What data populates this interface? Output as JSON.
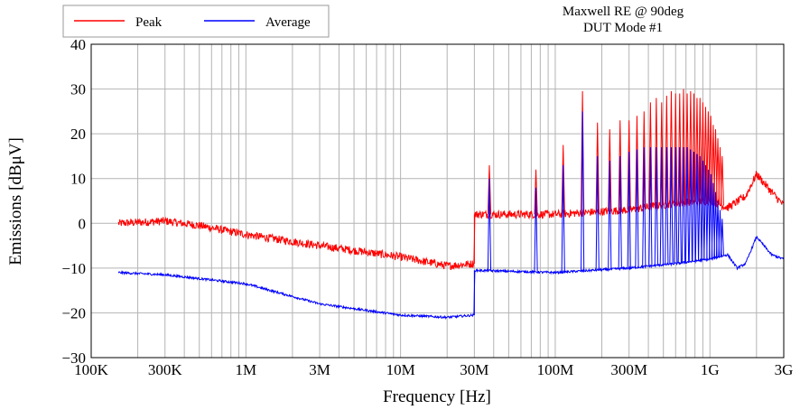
{
  "chart_data": {
    "type": "line",
    "title_lines": [
      "Maxwell RE @ 90deg",
      "DUT Mode #1"
    ],
    "xlabel": "Frequency [Hz]",
    "ylabel": "Emissions [dBμV]",
    "xscale": "log",
    "xlim": [
      100000,
      3000000000
    ],
    "ylim": [
      -30,
      40
    ],
    "grid": true,
    "legend_position": "top-left",
    "x_ticks": [
      {
        "value": 100000,
        "label": "100K"
      },
      {
        "value": 300000,
        "label": "300K"
      },
      {
        "value": 1000000,
        "label": "1M"
      },
      {
        "value": 3000000,
        "label": "3M"
      },
      {
        "value": 10000000,
        "label": "10M"
      },
      {
        "value": 30000000,
        "label": "30M"
      },
      {
        "value": 100000000,
        "label": "100M"
      },
      {
        "value": 300000000,
        "label": "300M"
      },
      {
        "value": 1000000000,
        "label": "1G"
      },
      {
        "value": 3000000000,
        "label": "3G"
      }
    ],
    "y_ticks": [
      {
        "value": -30,
        "label": "−30"
      },
      {
        "value": -20,
        "label": "−20"
      },
      {
        "value": -10,
        "label": "−10"
      },
      {
        "value": 0,
        "label": "0"
      },
      {
        "value": 10,
        "label": "10"
      },
      {
        "value": 20,
        "label": "20"
      },
      {
        "value": 30,
        "label": "30"
      },
      {
        "value": 40,
        "label": "40"
      }
    ],
    "series": [
      {
        "name": "Peak",
        "color": "#ff0000",
        "noise": 0.9,
        "baseline": [
          [
            150000,
            0
          ],
          [
            300000,
            0.5
          ],
          [
            500000,
            -0.5
          ],
          [
            1000000,
            -2.5
          ],
          [
            3000000,
            -5
          ],
          [
            10000000,
            -7.5
          ],
          [
            20000000,
            -9.5
          ],
          [
            29900000,
            -9
          ],
          [
            30100000,
            2
          ],
          [
            100000000,
            2
          ],
          [
            300000000,
            3
          ],
          [
            600000000,
            4.5
          ],
          [
            1000000000,
            5
          ],
          [
            1300000000,
            3.5
          ],
          [
            1700000000,
            6
          ],
          [
            2000000000,
            11
          ],
          [
            2500000000,
            7
          ],
          [
            3000000000,
            4
          ]
        ],
        "spikes": [
          [
            37500000,
            13
          ],
          [
            75000000,
            12
          ],
          [
            112500000,
            17.5
          ],
          [
            150000000,
            29.5
          ],
          [
            187500000,
            22.5
          ],
          [
            225000000,
            21
          ],
          [
            262500000,
            23
          ],
          [
            300000000,
            23
          ],
          [
            337500000,
            24
          ],
          [
            375000000,
            25
          ],
          [
            412500000,
            27
          ],
          [
            450000000,
            28
          ],
          [
            487500000,
            27
          ],
          [
            525000000,
            28.5
          ],
          [
            562500000,
            29.5
          ],
          [
            600000000,
            29
          ],
          [
            637500000,
            29
          ],
          [
            675000000,
            30
          ],
          [
            712500000,
            29
          ],
          [
            750000000,
            29.5
          ],
          [
            787500000,
            29
          ],
          [
            825000000,
            28
          ],
          [
            862500000,
            28
          ],
          [
            900000000,
            27
          ],
          [
            937500000,
            26
          ],
          [
            975000000,
            25
          ],
          [
            1012500000,
            24
          ],
          [
            1050000000,
            22
          ],
          [
            1087500000,
            21
          ],
          [
            1125000000,
            19
          ],
          [
            1162500000,
            17
          ],
          [
            1200000000,
            15
          ]
        ]
      },
      {
        "name": "Average",
        "color": "#0000ff",
        "noise": 0.25,
        "baseline": [
          [
            150000,
            -11
          ],
          [
            300000,
            -11.5
          ],
          [
            1000000,
            -13.5
          ],
          [
            3000000,
            -18
          ],
          [
            10000000,
            -20.5
          ],
          [
            20000000,
            -21
          ],
          [
            29900000,
            -20.5
          ],
          [
            30100000,
            -10.5
          ],
          [
            100000000,
            -11
          ],
          [
            300000000,
            -10
          ],
          [
            600000000,
            -9
          ],
          [
            1000000000,
            -8
          ],
          [
            1300000000,
            -7
          ],
          [
            1500000000,
            -10
          ],
          [
            1700000000,
            -9
          ],
          [
            2000000000,
            -3
          ],
          [
            2500000000,
            -7
          ],
          [
            3000000000,
            -8
          ]
        ],
        "spikes": [
          [
            37500000,
            10
          ],
          [
            75000000,
            8
          ],
          [
            112500000,
            13
          ],
          [
            150000000,
            25
          ],
          [
            187500000,
            15
          ],
          [
            225000000,
            14
          ],
          [
            262500000,
            15
          ],
          [
            300000000,
            16
          ],
          [
            337500000,
            16.5
          ],
          [
            375000000,
            17
          ],
          [
            412500000,
            17
          ],
          [
            450000000,
            17
          ],
          [
            487500000,
            17
          ],
          [
            525000000,
            17
          ],
          [
            562500000,
            17
          ],
          [
            600000000,
            17
          ],
          [
            637500000,
            17
          ],
          [
            675000000,
            17
          ],
          [
            712500000,
            17
          ],
          [
            750000000,
            16.5
          ],
          [
            787500000,
            16
          ],
          [
            825000000,
            15.5
          ],
          [
            862500000,
            15
          ],
          [
            900000000,
            14
          ],
          [
            937500000,
            13
          ],
          [
            975000000,
            12
          ],
          [
            1012500000,
            11
          ],
          [
            1050000000,
            9
          ],
          [
            1087500000,
            7
          ],
          [
            1125000000,
            5
          ],
          [
            1162500000,
            3
          ],
          [
            1200000000,
            1
          ]
        ]
      }
    ]
  }
}
